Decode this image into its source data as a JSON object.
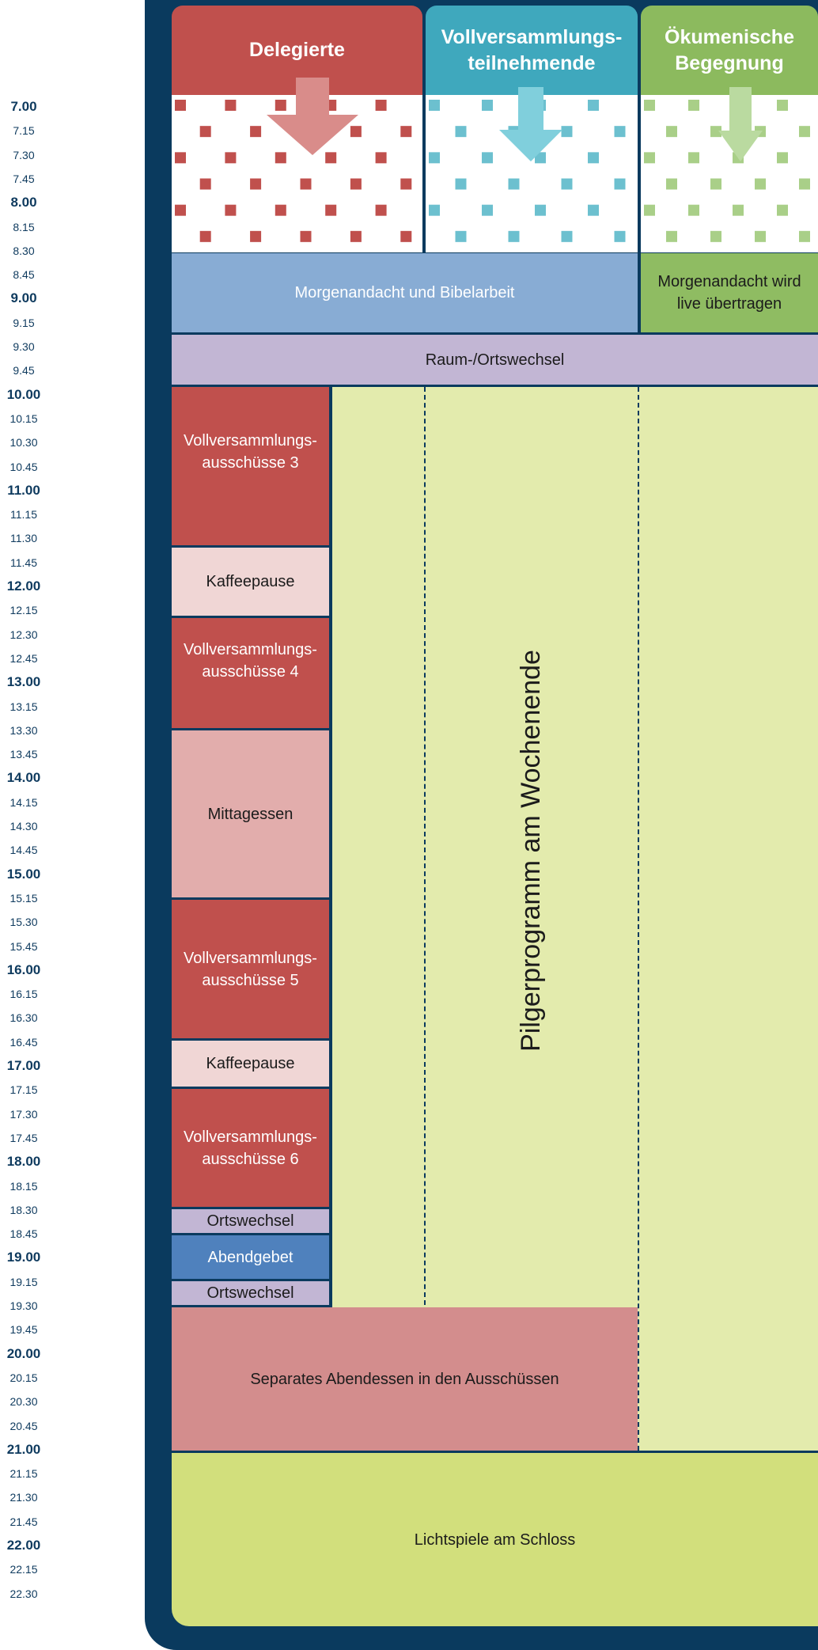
{
  "columns": [
    {
      "label": "Delegierte",
      "color": "#c0504d"
    },
    {
      "label": "Vollversammlungs-\nteilnehmende",
      "color": "#3fa8bd"
    },
    {
      "label": "Ökumenische\nBegegnung",
      "color": "#8cba5e"
    }
  ],
  "times": [
    "7.00",
    "7.15",
    "7.30",
    "7.45",
    "8.00",
    "8.15",
    "8.30",
    "8.45",
    "9.00",
    "9.15",
    "9.30",
    "9.45",
    "10.00",
    "10.15",
    "10.30",
    "10.45",
    "11.00",
    "11.15",
    "11.30",
    "11.45",
    "12.00",
    "12.15",
    "12.30",
    "12.45",
    "13.00",
    "13.15",
    "13.30",
    "13.45",
    "14.00",
    "14.15",
    "14.30",
    "14.45",
    "15.00",
    "15.15",
    "15.30",
    "15.45",
    "16.00",
    "16.15",
    "16.30",
    "16.45",
    "17.00",
    "17.15",
    "17.30",
    "17.45",
    "18.00",
    "18.15",
    "18.30",
    "18.45",
    "19.00",
    "19.15",
    "19.30",
    "19.45",
    "20.00",
    "20.15",
    "20.30",
    "20.45",
    "21.00",
    "21.15",
    "21.30",
    "21.45",
    "22.00",
    "22.15",
    "22.30"
  ],
  "events": {
    "morgenandacht": "Morgenandacht und Bibelarbeit",
    "morgenandacht_live": "Morgenandacht wird\nlive übertragen",
    "raumwechsel": "Raum-/Ortswechsel",
    "ausschuesse3": "Vollversammlungs-\nausschüsse 3",
    "kaffee1": "Kaffeepause",
    "ausschuesse4": "Vollversammlungs-\nausschüsse 4",
    "mittagessen": "Mittagessen",
    "ausschuesse5": "Vollversammlungs-\nausschüsse 5",
    "kaffee2": "Kaffeepause",
    "ausschuesse6": "Vollversammlungs-\nausschüsse 6",
    "ortswechsel1": "Ortswechsel",
    "abendgebet": "Abendgebet",
    "ortswechsel2": "Ortswechsel",
    "pilgerprogramm": "Pilgerprogramm am Wochenende",
    "abendessen": "Separates Abendessen in den Ausschüssen",
    "lichtspiele": "Lichtspiele am Schloss"
  }
}
